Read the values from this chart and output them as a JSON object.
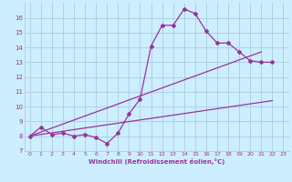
{
  "bg_color": "#cceeff",
  "grid_color": "#aaccdd",
  "line_color": "#993399",
  "xlabel": "Windchill (Refroidissement éolien,°C)",
  "xlim": [
    -0.5,
    23.5
  ],
  "ylim": [
    7,
    17
  ],
  "yticks": [
    7,
    8,
    9,
    10,
    11,
    12,
    13,
    14,
    15,
    16
  ],
  "xticks": [
    0,
    1,
    2,
    3,
    4,
    5,
    6,
    7,
    8,
    9,
    10,
    11,
    12,
    13,
    14,
    15,
    16,
    17,
    18,
    19,
    20,
    21,
    22,
    23
  ],
  "line1_x": [
    0,
    1,
    2,
    3,
    4,
    5,
    6,
    7,
    8,
    9,
    10,
    11,
    12,
    13,
    14,
    15,
    16,
    17,
    18,
    19,
    20,
    21,
    22
  ],
  "line1_y": [
    8.0,
    8.6,
    8.1,
    8.2,
    8.0,
    8.1,
    7.9,
    7.5,
    8.2,
    9.5,
    10.5,
    14.1,
    15.5,
    15.5,
    16.6,
    16.3,
    15.1,
    14.3,
    14.3,
    13.7,
    13.1,
    13.0,
    13.0
  ],
  "line2_x": [
    0,
    21
  ],
  "line2_y": [
    8.0,
    13.7
  ],
  "line3_x": [
    0,
    22
  ],
  "line3_y": [
    8.0,
    10.4
  ],
  "markersize": 2.0,
  "linewidth": 0.9,
  "tick_fontsize": 4.5,
  "xlabel_fontsize": 5.0
}
